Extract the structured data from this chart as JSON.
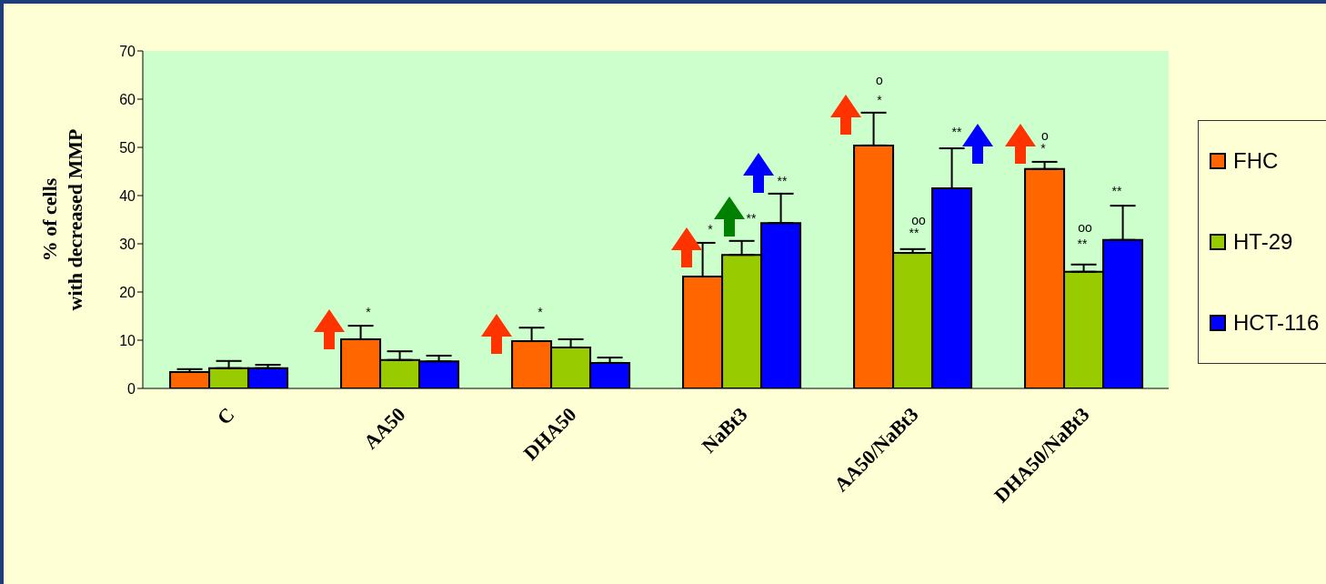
{
  "chart_data": {
    "type": "bar",
    "ylabel": "% of cells\nwith decreased MMP",
    "categories": [
      "C",
      "AA50",
      "DHA50",
      "NaBt3",
      "AA50/NaBt3",
      "DHA50/NaBt3"
    ],
    "series": [
      {
        "name": "FHC",
        "color": "#ff6600",
        "values": [
          3.4,
          10.2,
          9.8,
          23.2,
          50.4,
          45.5
        ],
        "errors": [
          [
            3.4,
            4.0
          ],
          [
            10.2,
            13.0
          ],
          [
            9.8,
            12.6
          ],
          [
            23.2,
            30.2
          ],
          [
            50.4,
            57.2
          ],
          [
            45.5,
            47.0
          ]
        ]
      },
      {
        "name": "HT-29",
        "color": "#99cc00",
        "values": [
          4.2,
          5.9,
          8.5,
          27.7,
          28.1,
          24.2
        ],
        "errors": [
          [
            4.2,
            5.7
          ],
          [
            5.9,
            7.7
          ],
          [
            8.5,
            10.2
          ],
          [
            27.7,
            30.6
          ],
          [
            28.1,
            28.9
          ],
          [
            24.2,
            25.7
          ]
        ]
      },
      {
        "name": "HCT-116",
        "color": "#0000ff",
        "values": [
          4.2,
          5.6,
          5.3,
          34.3,
          41.5,
          30.8
        ],
        "errors": [
          [
            4.2,
            4.9
          ],
          [
            5.6,
            6.8
          ],
          [
            5.3,
            6.4
          ],
          [
            34.3,
            40.4
          ],
          [
            41.5,
            49.8
          ],
          [
            30.8,
            37.9
          ]
        ]
      }
    ],
    "ylim": [
      0,
      70
    ],
    "yticks": [
      0,
      10,
      20,
      30,
      40,
      50,
      60,
      70
    ],
    "grid": false,
    "legend": "right",
    "annotations": [
      "*",
      "*",
      "*",
      "**",
      "**",
      "o",
      "*",
      "oo",
      "**",
      "**",
      "o",
      "*",
      "oo",
      "**",
      "**"
    ]
  }
}
